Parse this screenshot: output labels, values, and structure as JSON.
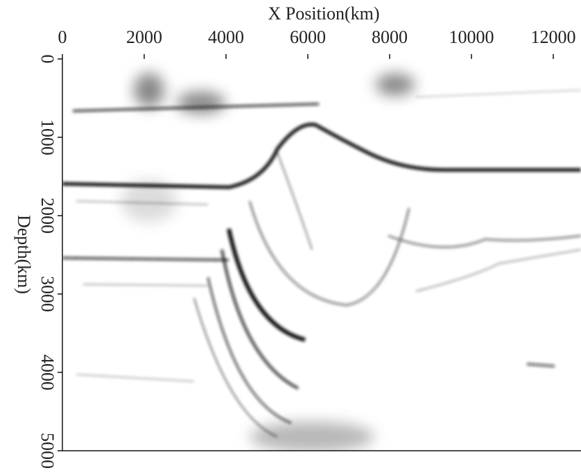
{
  "chart_data": {
    "type": "image",
    "xlabel": "X Position(km)",
    "ylabel": "Depth(km)",
    "xlim": [
      0,
      12678
    ],
    "ylim": [
      0,
      5000
    ],
    "xticks": [
      0,
      2000,
      4000,
      6000,
      8000,
      10000,
      12000
    ],
    "yticks": [
      0,
      1000,
      2000,
      3000,
      4000,
      5000
    ],
    "x_axis_position": "top",
    "y_inverted": true
  }
}
